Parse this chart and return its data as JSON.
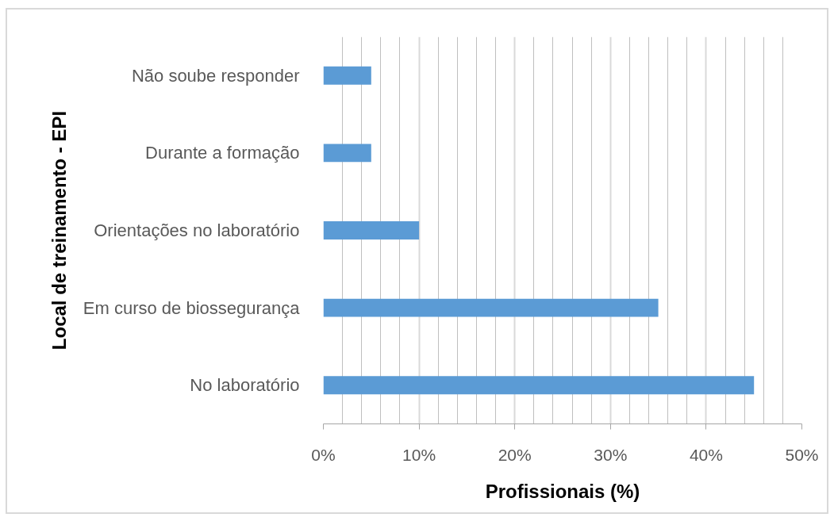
{
  "chart_data": {
    "type": "bar",
    "orientation": "horizontal",
    "xlabel": "Profissionais (%)",
    "ylabel": "Local de treinamento - EPI",
    "categories": [
      "Não soube responder",
      "Durante a formação",
      "Orientações no laboratório",
      "Em curso de biossegurança",
      "No laboratório"
    ],
    "values": [
      5,
      5,
      10,
      35,
      45
    ],
    "color": "#5b9bd5",
    "xlim": [
      0,
      50
    ],
    "xticks": [
      {
        "value": 0,
        "label": "0%"
      },
      {
        "value": 2,
        "label": null
      },
      {
        "value": 4,
        "label": null
      },
      {
        "value": 6,
        "label": null
      },
      {
        "value": 8,
        "label": null
      },
      {
        "value": 10,
        "label": "10%"
      },
      {
        "value": 12,
        "label": null
      },
      {
        "value": 14,
        "label": null
      },
      {
        "value": 16,
        "label": null
      },
      {
        "value": 18,
        "label": null
      },
      {
        "value": 20,
        "label": "20%"
      },
      {
        "value": 22,
        "label": null
      },
      {
        "value": 24,
        "label": null
      },
      {
        "value": 26,
        "label": null
      },
      {
        "value": 28,
        "label": null
      },
      {
        "value": 30,
        "label": "30%"
      },
      {
        "value": 32,
        "label": null
      },
      {
        "value": 34,
        "label": null
      },
      {
        "value": 36,
        "label": null
      },
      {
        "value": 38,
        "label": null
      },
      {
        "value": 40,
        "label": "40%"
      },
      {
        "value": 42,
        "label": null
      },
      {
        "value": 44,
        "label": null
      },
      {
        "value": 46,
        "label": null
      },
      {
        "value": 48,
        "label": null
      },
      {
        "value": 50,
        "label": "50%"
      }
    ],
    "grid": "x"
  }
}
